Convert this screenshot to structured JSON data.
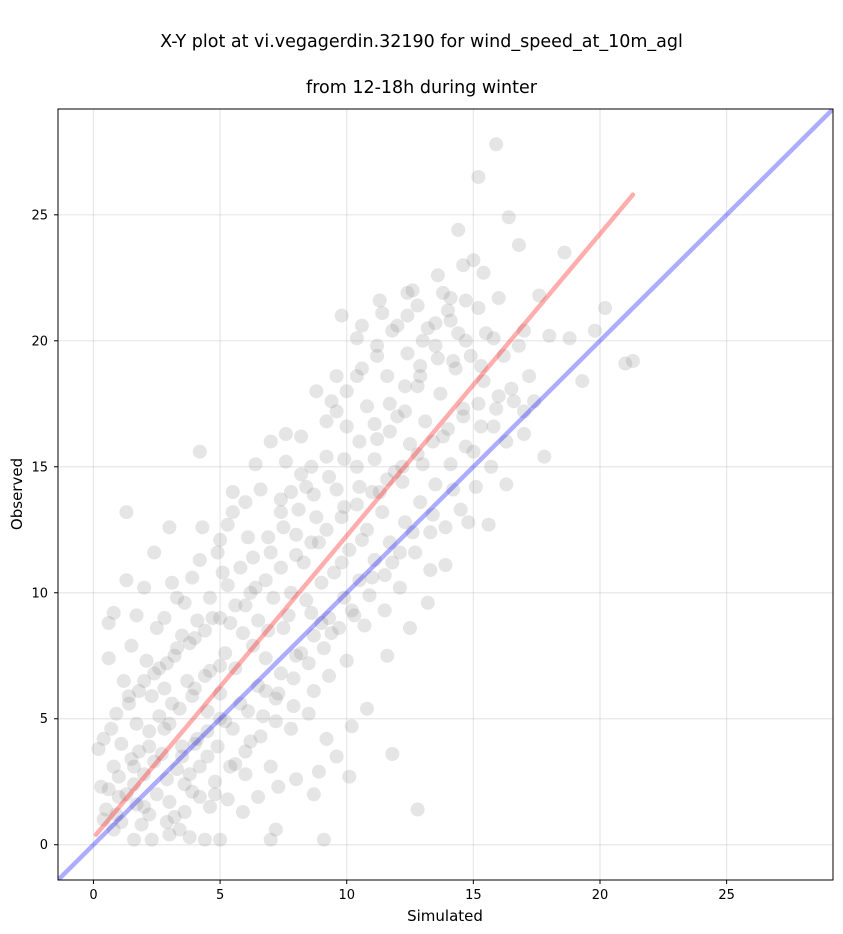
{
  "chart_data": {
    "type": "scatter",
    "title_line1": "X-Y plot at vi.vegagerdin.32190 for wind_speed_at_10m_agl",
    "title_line2": "from 12-18h during winter",
    "xlabel": "Simulated",
    "ylabel": "Observed",
    "xlim": [
      -1.4,
      29.2
    ],
    "ylim": [
      -1.4,
      29.2
    ],
    "xticks": [
      0,
      5,
      10,
      15,
      20,
      25
    ],
    "yticks": [
      0,
      5,
      10,
      15,
      20,
      25
    ],
    "grid": true,
    "point_color": "#7f7f7f",
    "point_opacity": 0.2,
    "points": [
      [
        0.9,
        1.2
      ],
      [
        1.3,
        2.0
      ],
      [
        0.8,
        3.1
      ],
      [
        1.6,
        2.4
      ],
      [
        2.0,
        1.5
      ],
      [
        2.4,
        3.3
      ],
      [
        1.1,
        4.0
      ],
      [
        2.9,
        2.6
      ],
      [
        3.2,
        1.1
      ],
      [
        1.8,
        3.7
      ],
      [
        2.2,
        4.5
      ],
      [
        3.5,
        3.9
      ],
      [
        3.8,
        2.8
      ],
      [
        4.1,
        4.2
      ],
      [
        2.6,
        5.1
      ],
      [
        1.4,
        5.6
      ],
      [
        4.5,
        3.5
      ],
      [
        3.0,
        4.8
      ],
      [
        0.6,
        2.2
      ],
      [
        1.9,
        0.8
      ],
      [
        3.4,
        0.6
      ],
      [
        4.8,
        2.0
      ],
      [
        2.8,
        6.2
      ],
      [
        1.2,
        6.5
      ],
      [
        3.9,
        5.9
      ],
      [
        4.4,
        6.7
      ],
      [
        5.2,
        4.9
      ],
      [
        5.6,
        3.2
      ],
      [
        2.1,
        7.3
      ],
      [
        3.3,
        7.8
      ],
      [
        4.0,
        8.2
      ],
      [
        5.0,
        7.1
      ],
      [
        5.8,
        5.6
      ],
      [
        6.2,
        4.1
      ],
      [
        6.5,
        6.3
      ],
      [
        4.7,
        9.0
      ],
      [
        3.6,
        9.6
      ],
      [
        2.5,
        8.6
      ],
      [
        5.4,
        8.8
      ],
      [
        6.0,
        9.5
      ],
      [
        6.8,
        7.4
      ],
      [
        7.2,
        5.8
      ],
      [
        7.5,
        8.6
      ],
      [
        6.4,
        10.2
      ],
      [
        5.1,
        10.8
      ],
      [
        4.2,
        11.3
      ],
      [
        3.1,
        10.4
      ],
      [
        2.4,
        11.6
      ],
      [
        1.3,
        10.5
      ],
      [
        0.8,
        9.2
      ],
      [
        0.6,
        7.4
      ],
      [
        1.5,
        7.9
      ],
      [
        7.8,
        10.0
      ],
      [
        8.2,
        7.6
      ],
      [
        8.6,
        9.2
      ],
      [
        7.0,
        11.6
      ],
      [
        6.1,
        12.2
      ],
      [
        5.3,
        12.7
      ],
      [
        4.3,
        12.6
      ],
      [
        3.0,
        12.6
      ],
      [
        1.3,
        13.2
      ],
      [
        9.0,
        10.4
      ],
      [
        9.4,
        8.4
      ],
      [
        8.0,
        12.3
      ],
      [
        7.4,
        13.2
      ],
      [
        6.6,
        14.1
      ],
      [
        5.5,
        14.0
      ],
      [
        4.2,
        15.6
      ],
      [
        9.8,
        11.2
      ],
      [
        10.2,
        9.3
      ],
      [
        8.8,
        13.0
      ],
      [
        8.4,
        14.2
      ],
      [
        7.6,
        15.2
      ],
      [
        7.0,
        16.0
      ],
      [
        6.4,
        15.1
      ],
      [
        10.6,
        12.1
      ],
      [
        11.0,
        10.6
      ],
      [
        9.6,
        14.1
      ],
      [
        9.2,
        15.4
      ],
      [
        8.2,
        16.2
      ],
      [
        7.6,
        16.3
      ],
      [
        11.4,
        13.2
      ],
      [
        11.8,
        11.2
      ],
      [
        10.4,
        15.0
      ],
      [
        10.0,
        16.6
      ],
      [
        9.4,
        17.6
      ],
      [
        8.8,
        18.0
      ],
      [
        12.2,
        14.4
      ],
      [
        12.6,
        12.4
      ],
      [
        11.2,
        16.1
      ],
      [
        10.8,
        17.4
      ],
      [
        10.4,
        18.6
      ],
      [
        9.6,
        18.6
      ],
      [
        13.0,
        15.1
      ],
      [
        13.4,
        13.1
      ],
      [
        12.0,
        17.0
      ],
      [
        11.6,
        18.6
      ],
      [
        11.2,
        19.4
      ],
      [
        10.4,
        20.1
      ],
      [
        13.8,
        16.2
      ],
      [
        14.2,
        14.1
      ],
      [
        12.8,
        18.2
      ],
      [
        12.4,
        19.5
      ],
      [
        12.0,
        20.6
      ],
      [
        11.4,
        21.1
      ],
      [
        10.6,
        20.6
      ],
      [
        9.8,
        21.0
      ],
      [
        14.6,
        17.3
      ],
      [
        15.0,
        15.6
      ],
      [
        13.6,
        19.3
      ],
      [
        13.2,
        20.5
      ],
      [
        12.8,
        21.4
      ],
      [
        12.4,
        21.9
      ],
      [
        15.4,
        18.4
      ],
      [
        15.8,
        16.6
      ],
      [
        14.4,
        20.3
      ],
      [
        14.0,
        21.2
      ],
      [
        13.6,
        22.6
      ],
      [
        16.2,
        19.4
      ],
      [
        16.6,
        17.6
      ],
      [
        15.2,
        21.3
      ],
      [
        14.6,
        23.0
      ],
      [
        14.4,
        24.4
      ],
      [
        15.0,
        23.2
      ],
      [
        15.4,
        22.7
      ],
      [
        17.0,
        20.4
      ],
      [
        17.2,
        18.6
      ],
      [
        16.0,
        21.7
      ],
      [
        15.8,
        20.1
      ],
      [
        16.8,
        23.8
      ],
      [
        16.4,
        24.9
      ],
      [
        15.2,
        26.5
      ],
      [
        15.9,
        27.8
      ],
      [
        17.6,
        21.8
      ],
      [
        18.0,
        20.2
      ],
      [
        18.6,
        23.5
      ],
      [
        18.8,
        20.1
      ],
      [
        19.8,
        20.4
      ],
      [
        20.2,
        21.3
      ],
      [
        21.0,
        19.1
      ],
      [
        21.3,
        19.2
      ],
      [
        19.3,
        18.4
      ],
      [
        17.8,
        15.4
      ],
      [
        17.0,
        16.3
      ],
      [
        16.3,
        14.3
      ],
      [
        15.6,
        12.7
      ],
      [
        14.8,
        12.8
      ],
      [
        13.9,
        11.1
      ],
      [
        13.2,
        9.6
      ],
      [
        12.5,
        8.6
      ],
      [
        11.6,
        7.5
      ],
      [
        10.8,
        5.4
      ],
      [
        10.2,
        4.7
      ],
      [
        9.6,
        3.5
      ],
      [
        8.9,
        2.9
      ],
      [
        8.0,
        2.6
      ],
      [
        7.3,
        2.3
      ],
      [
        6.5,
        1.9
      ],
      [
        5.9,
        1.3
      ],
      [
        5.0,
        0.2
      ],
      [
        4.4,
        0.2
      ],
      [
        3.8,
        0.3
      ],
      [
        3.0,
        0.4
      ],
      [
        2.3,
        0.2
      ],
      [
        1.6,
        0.2
      ],
      [
        7.2,
        0.6
      ],
      [
        7.0,
        0.2
      ],
      [
        9.1,
        0.2
      ],
      [
        8.7,
        2.0
      ],
      [
        11.8,
        3.6
      ],
      [
        12.8,
        1.4
      ],
      [
        10.1,
        2.7
      ],
      [
        9.2,
        4.2
      ],
      [
        8.5,
        5.2
      ],
      [
        7.8,
        4.6
      ],
      [
        7.0,
        3.1
      ],
      [
        6.0,
        2.8
      ],
      [
        5.3,
        1.8
      ],
      [
        4.6,
        1.5
      ],
      [
        3.9,
        2.1
      ],
      [
        3.3,
        3.0
      ],
      [
        2.7,
        3.6
      ],
      [
        2.0,
        2.8
      ],
      [
        1.5,
        3.4
      ],
      [
        1.0,
        2.7
      ],
      [
        0.5,
        1.4
      ],
      [
        0.3,
        2.3
      ],
      [
        0.7,
        4.6
      ],
      [
        1.7,
        4.8
      ],
      [
        2.3,
        5.9
      ],
      [
        3.1,
        5.6
      ],
      [
        3.7,
        6.5
      ],
      [
        4.5,
        5.3
      ],
      [
        5.0,
        6.0
      ],
      [
        5.6,
        7.0
      ],
      [
        6.3,
        7.9
      ],
      [
        6.9,
        8.5
      ],
      [
        7.7,
        9.1
      ],
      [
        8.4,
        9.7
      ],
      [
        9.0,
        8.8
      ],
      [
        9.5,
        10.8
      ],
      [
        10.1,
        11.7
      ],
      [
        10.8,
        12.5
      ],
      [
        11.3,
        14.0
      ],
      [
        11.9,
        14.8
      ],
      [
        12.5,
        15.9
      ],
      [
        13.1,
        16.8
      ],
      [
        13.7,
        17.9
      ],
      [
        14.3,
        18.9
      ],
      [
        14.9,
        19.4
      ],
      [
        15.5,
        20.3
      ],
      [
        9.9,
        13.4
      ],
      [
        10.5,
        14.2
      ],
      [
        11.1,
        15.3
      ],
      [
        11.7,
        16.4
      ],
      [
        12.3,
        17.2
      ],
      [
        12.9,
        18.6
      ],
      [
        13.5,
        19.8
      ],
      [
        14.1,
        20.8
      ],
      [
        14.7,
        21.6
      ],
      [
        8.3,
        11.2
      ],
      [
        8.9,
        12.0
      ],
      [
        7.1,
        9.8
      ],
      [
        6.5,
        8.9
      ],
      [
        5.9,
        8.4
      ],
      [
        5.2,
        7.6
      ],
      [
        4.6,
        6.9
      ],
      [
        4.0,
        6.2
      ],
      [
        3.4,
        5.4
      ],
      [
        2.8,
        4.6
      ],
      [
        2.2,
        3.9
      ],
      [
        1.6,
        3.1
      ],
      [
        1.0,
        1.9
      ],
      [
        0.4,
        1.0
      ],
      [
        3.6,
        2.4
      ],
      [
        4.2,
        3.1
      ],
      [
        4.9,
        3.9
      ],
      [
        5.5,
        4.6
      ],
      [
        6.1,
        5.3
      ],
      [
        6.8,
        6.1
      ],
      [
        7.4,
        6.8
      ],
      [
        8.0,
        7.5
      ],
      [
        8.7,
        8.3
      ],
      [
        9.3,
        9.0
      ],
      [
        9.9,
        9.8
      ],
      [
        10.5,
        10.5
      ],
      [
        11.1,
        11.3
      ],
      [
        11.7,
        12.0
      ],
      [
        12.3,
        12.8
      ],
      [
        12.9,
        13.6
      ],
      [
        13.5,
        14.3
      ],
      [
        14.1,
        15.1
      ],
      [
        14.7,
        15.8
      ],
      [
        15.3,
        16.6
      ],
      [
        15.9,
        17.3
      ],
      [
        16.5,
        18.1
      ],
      [
        2.5,
        2.0
      ],
      [
        3.0,
        1.7
      ],
      [
        3.5,
        3.5
      ],
      [
        4.0,
        4.0
      ],
      [
        4.5,
        4.5
      ],
      [
        5.0,
        5.0
      ],
      [
        2.0,
        6.5
      ],
      [
        2.6,
        7.0
      ],
      [
        3.2,
        7.5
      ],
      [
        3.8,
        8.0
      ],
      [
        4.4,
        8.5
      ],
      [
        5.0,
        9.0
      ],
      [
        5.6,
        9.5
      ],
      [
        6.2,
        10.0
      ],
      [
        6.8,
        10.5
      ],
      [
        7.4,
        11.0
      ],
      [
        8.0,
        11.5
      ],
      [
        8.6,
        12.0
      ],
      [
        9.2,
        12.5
      ],
      [
        9.8,
        13.0
      ],
      [
        10.4,
        13.5
      ],
      [
        11.0,
        14.0
      ],
      [
        11.6,
        14.5
      ],
      [
        12.2,
        15.0
      ],
      [
        12.8,
        15.5
      ],
      [
        13.4,
        16.0
      ],
      [
        14.0,
        16.5
      ],
      [
        14.6,
        17.0
      ],
      [
        15.2,
        17.5
      ],
      [
        10.0,
        18.0
      ],
      [
        10.6,
        18.9
      ],
      [
        11.2,
        19.8
      ],
      [
        11.8,
        20.4
      ],
      [
        12.4,
        21.0
      ],
      [
        9.2,
        16.8
      ],
      [
        9.6,
        17.2
      ],
      [
        8.6,
        15.0
      ],
      [
        8.2,
        14.7
      ],
      [
        7.8,
        14.0
      ],
      [
        7.4,
        13.7
      ],
      [
        16.0,
        17.8
      ],
      [
        16.8,
        19.8
      ],
      [
        17.4,
        17.6
      ],
      [
        14.2,
        19.2
      ],
      [
        13.3,
        12.4
      ],
      [
        12.1,
        11.6
      ],
      [
        11.5,
        9.3
      ],
      [
        10.7,
        8.7
      ],
      [
        10.0,
        7.3
      ],
      [
        9.3,
        6.7
      ],
      [
        8.7,
        6.1
      ],
      [
        7.9,
        5.5
      ],
      [
        7.2,
        4.9
      ],
      [
        6.6,
        4.3
      ],
      [
        6.0,
        3.7
      ],
      [
        5.4,
        3.1
      ],
      [
        4.8,
        2.5
      ],
      [
        4.2,
        1.9
      ],
      [
        3.6,
        1.3
      ],
      [
        2.9,
        0.9
      ],
      [
        2.2,
        1.2
      ],
      [
        1.7,
        1.6
      ],
      [
        1.1,
        0.9
      ],
      [
        0.8,
        0.6
      ],
      [
        0.2,
        3.8
      ],
      [
        0.4,
        4.2
      ],
      [
        0.9,
        5.2
      ],
      [
        1.4,
        5.9
      ],
      [
        1.8,
        6.1
      ],
      [
        2.4,
        6.8
      ],
      [
        2.9,
        7.2
      ],
      [
        3.5,
        8.3
      ],
      [
        4.1,
        8.9
      ],
      [
        4.6,
        9.8
      ],
      [
        5.3,
        10.3
      ],
      [
        5.8,
        11.0
      ],
      [
        6.3,
        11.4
      ],
      [
        6.9,
        12.2
      ],
      [
        7.5,
        12.6
      ],
      [
        8.1,
        13.3
      ],
      [
        8.7,
        13.9
      ],
      [
        9.3,
        14.6
      ],
      [
        9.9,
        15.3
      ],
      [
        10.5,
        16.0
      ],
      [
        11.1,
        16.7
      ],
      [
        11.7,
        17.5
      ],
      [
        12.3,
        18.2
      ],
      [
        12.9,
        19.0
      ],
      [
        13.5,
        20.7
      ],
      [
        14.1,
        21.7
      ],
      [
        14.7,
        20.0
      ],
      [
        15.3,
        19.0
      ],
      [
        11.3,
        21.6
      ],
      [
        12.6,
        22.0
      ],
      [
        13.8,
        21.9
      ],
      [
        13.0,
        20.0
      ],
      [
        6.7,
        5.1
      ],
      [
        7.3,
        6.0
      ],
      [
        7.9,
        6.6
      ],
      [
        8.5,
        7.2
      ],
      [
        9.1,
        7.8
      ],
      [
        9.7,
        8.6
      ],
      [
        10.3,
        9.1
      ],
      [
        10.9,
        9.9
      ],
      [
        11.5,
        10.7
      ],
      [
        12.1,
        10.2
      ],
      [
        12.7,
        11.6
      ],
      [
        13.3,
        10.9
      ],
      [
        13.9,
        12.6
      ],
      [
        14.5,
        13.3
      ],
      [
        15.1,
        14.2
      ],
      [
        15.7,
        15.0
      ],
      [
        16.3,
        16.0
      ],
      [
        17.0,
        17.2
      ],
      [
        2.8,
        9.0
      ],
      [
        3.3,
        9.8
      ],
      [
        3.9,
        10.6
      ],
      [
        2.0,
        10.2
      ],
      [
        1.7,
        9.1
      ],
      [
        0.6,
        8.8
      ],
      [
        4.9,
        11.6
      ],
      [
        5.5,
        13.2
      ],
      [
        6.0,
        13.6
      ],
      [
        5.0,
        12.1
      ]
    ],
    "series": [
      {
        "name": "",
        "color": "#ff0000",
        "opacity": 0.32,
        "x": [
          0.1,
          21.3
        ],
        "y": [
          0.4,
          25.8
        ]
      },
      {
        "name": "",
        "color": "#0000ff",
        "opacity": 0.32,
        "x": [
          -1.4,
          29.2
        ],
        "y": [
          -1.4,
          29.2
        ]
      }
    ]
  }
}
